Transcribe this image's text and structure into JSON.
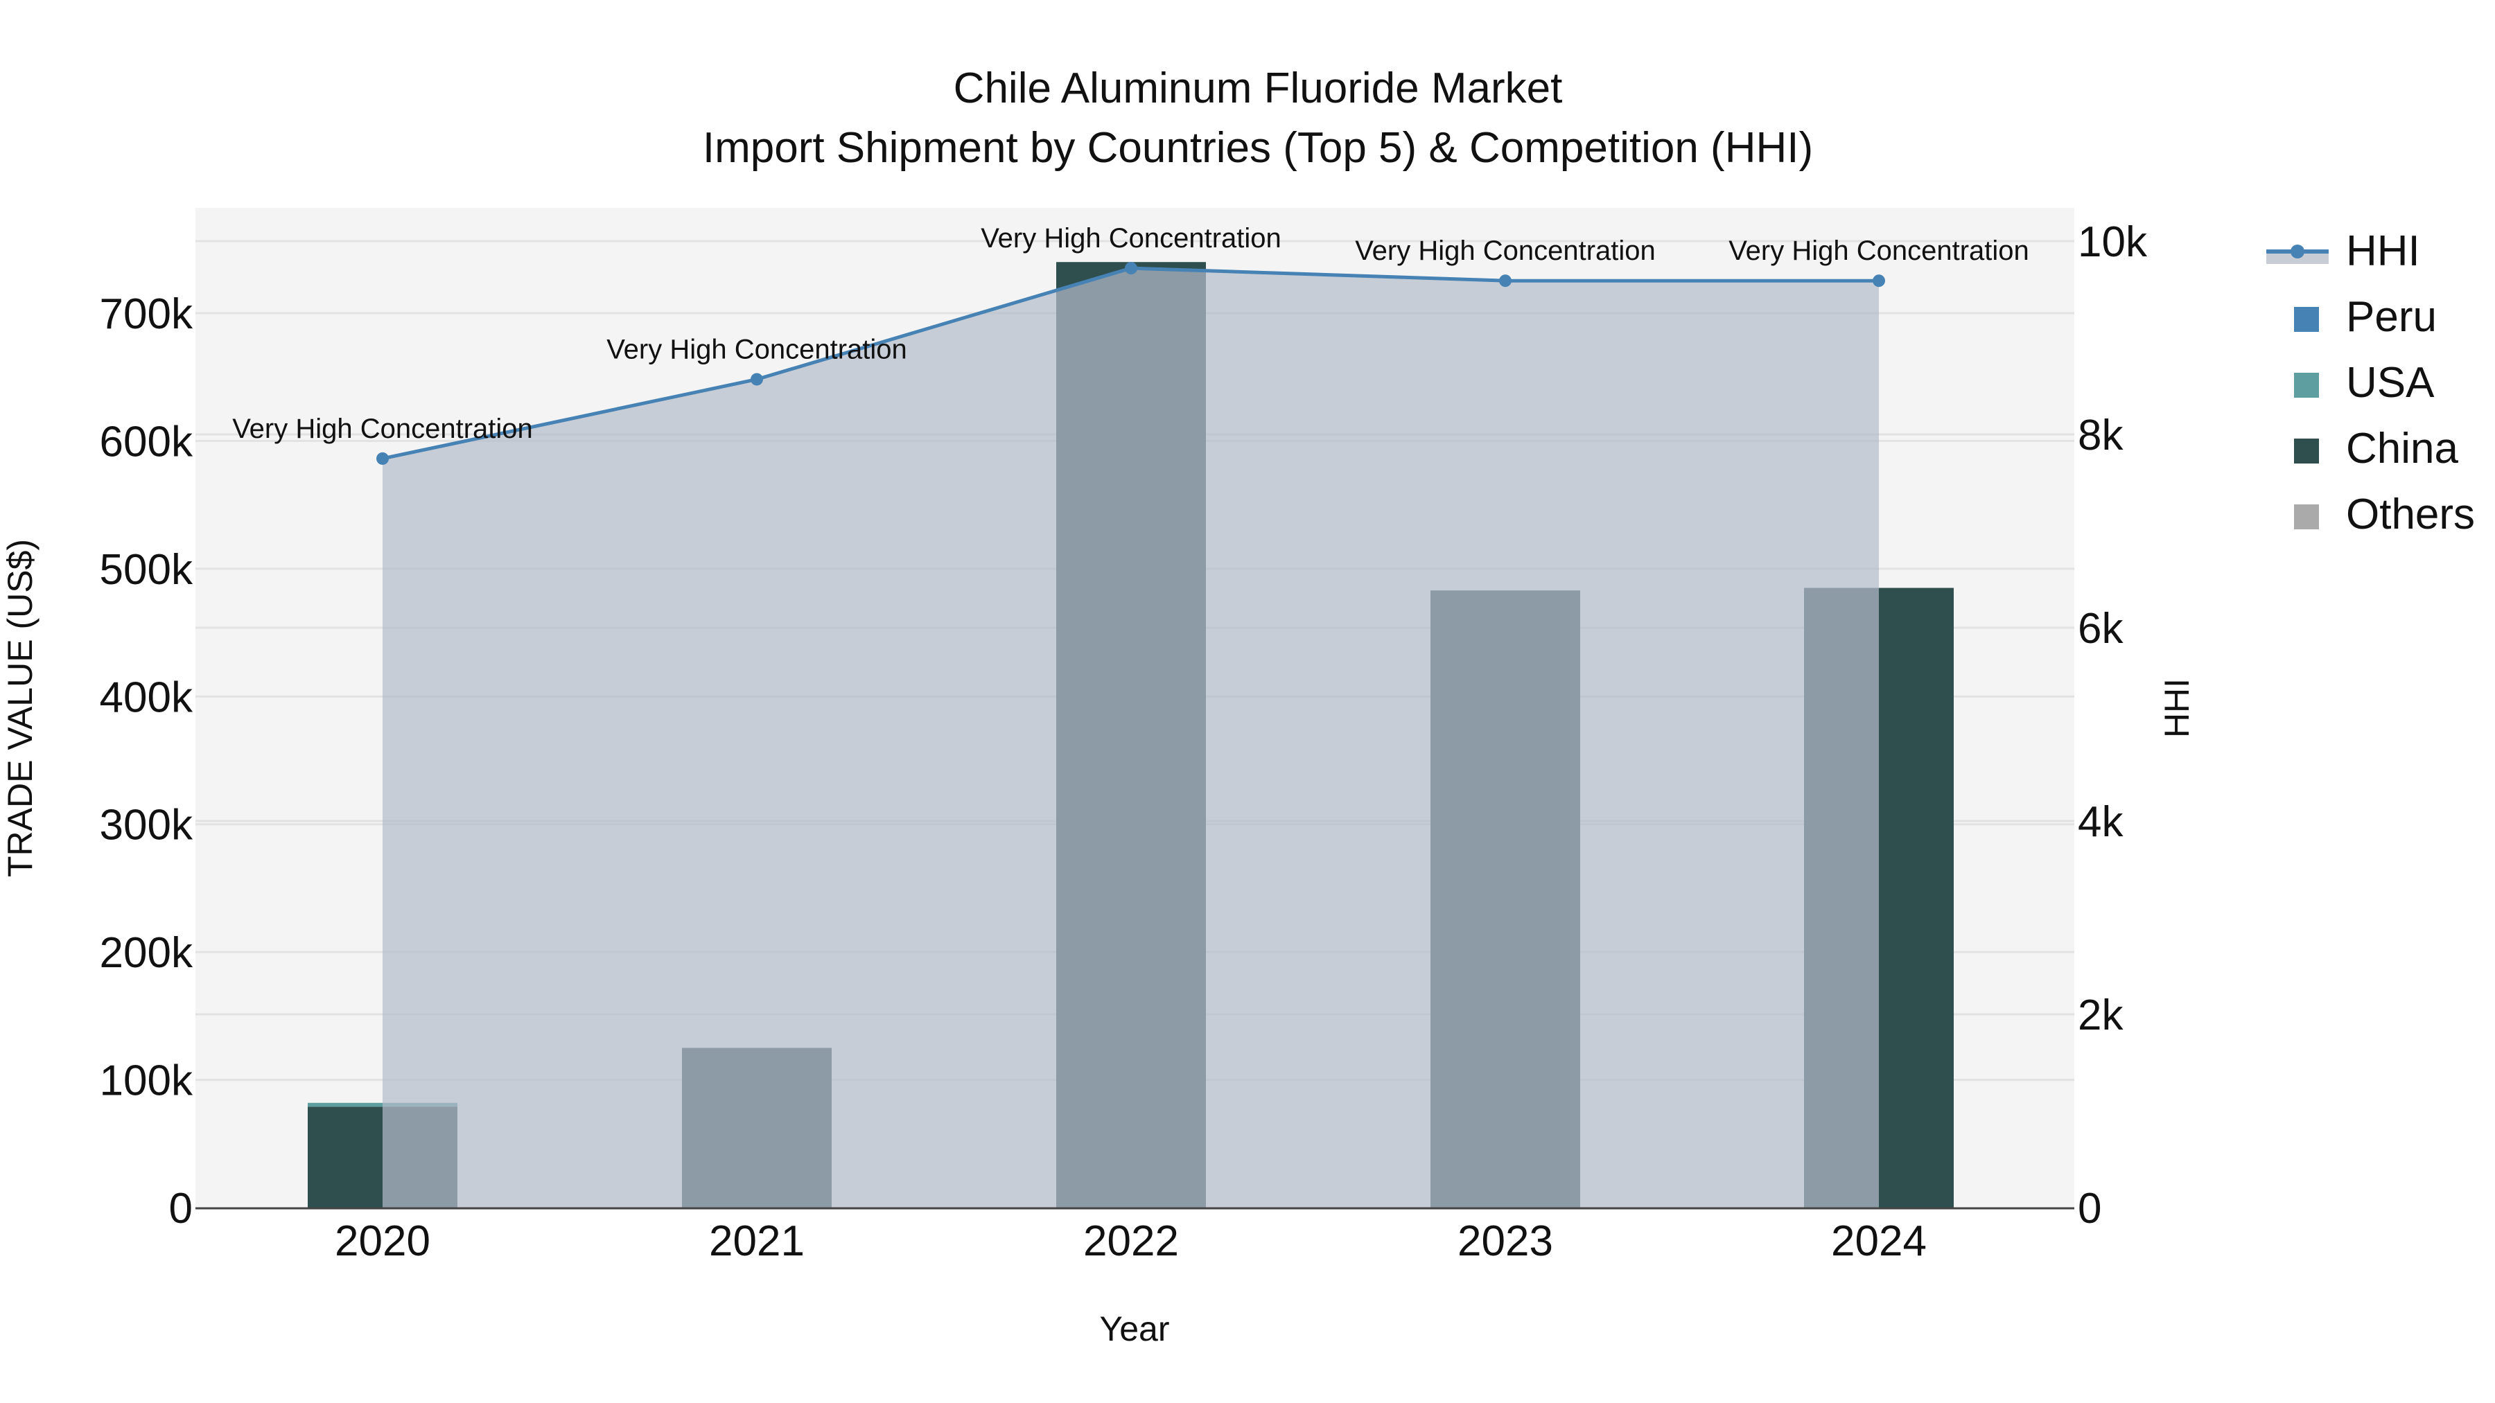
{
  "title": {
    "line1": "Chile  Aluminum Fluoride Market",
    "line2": "Import Shipment by Countries (Top 5) & Competition (HHI)"
  },
  "axes": {
    "x_label": "Year",
    "y_left_label": "TRADE VALUE (US$)",
    "y_right_label": "HHI",
    "x_ticks": [
      "2020",
      "2021",
      "2022",
      "2023",
      "2024"
    ],
    "y_left_ticks": [
      "0",
      "100k",
      "200k",
      "300k",
      "400k",
      "500k",
      "600k",
      "700k"
    ],
    "y_right_ticks": [
      "0",
      "2k",
      "4k",
      "6k",
      "8k",
      "10k"
    ]
  },
  "legend": [
    {
      "label": "HHI",
      "color": "#4682b4",
      "type": "line"
    },
    {
      "label": "Peru",
      "color": "#4682b4",
      "type": "square"
    },
    {
      "label": "USA",
      "color": "#5f9ea0",
      "type": "square"
    },
    {
      "label": "China",
      "color": "#2f4f4f",
      "type": "square"
    },
    {
      "label": "Others",
      "color": "#aaaaaa",
      "type": "square"
    }
  ],
  "annotations": [
    "Very High Concentration",
    "Very High Concentration",
    "Very High Concentration",
    "Very High Concentration",
    "Very High Concentration"
  ],
  "colors": {
    "plot_bg": "#f4f4f4",
    "hhi_line": "#4682b4",
    "hhi_fill": "#c8cdd5",
    "china": "#2f4f4f",
    "usa": "#5f9ea0",
    "peru": "#4682b4",
    "others": "#aaaaaa",
    "bar_under_fill": "#4a6268"
  },
  "chart_data": {
    "type": "bar",
    "title": "Chile  Aluminum Fluoride Market — Import Shipment by Countries (Top 5) & Competition (HHI)",
    "xlabel": "Year",
    "ylabel": "TRADE VALUE (US$)",
    "y2label": "HHI",
    "categories": [
      "2020",
      "2021",
      "2022",
      "2023",
      "2024"
    ],
    "ylim": [
      0,
      770000
    ],
    "y2lim": [
      0,
      10300
    ],
    "series": [
      {
        "name": "China",
        "type": "bar",
        "values": [
          79000,
          125000,
          740000,
          483000,
          485000
        ]
      },
      {
        "name": "USA",
        "type": "bar",
        "values": [
          3000,
          0,
          0,
          0,
          0
        ]
      },
      {
        "name": "Peru",
        "type": "bar",
        "values": [
          0,
          0,
          0,
          0,
          0
        ]
      },
      {
        "name": "Others",
        "type": "bar",
        "values": [
          0,
          0,
          0,
          0,
          0
        ]
      },
      {
        "name": "HHI",
        "type": "line+area",
        "axis": "right",
        "values": [
          7750,
          8570,
          9720,
          9590,
          9590
        ]
      }
    ],
    "annotations": [
      {
        "x": "2020",
        "text": "Very High Concentration"
      },
      {
        "x": "2021",
        "text": "Very High Concentration"
      },
      {
        "x": "2022",
        "text": "Very High Concentration"
      },
      {
        "x": "2023",
        "text": "Very High Concentration"
      },
      {
        "x": "2024",
        "text": "Very High Concentration"
      }
    ],
    "grid": true,
    "legend_position": "right"
  }
}
